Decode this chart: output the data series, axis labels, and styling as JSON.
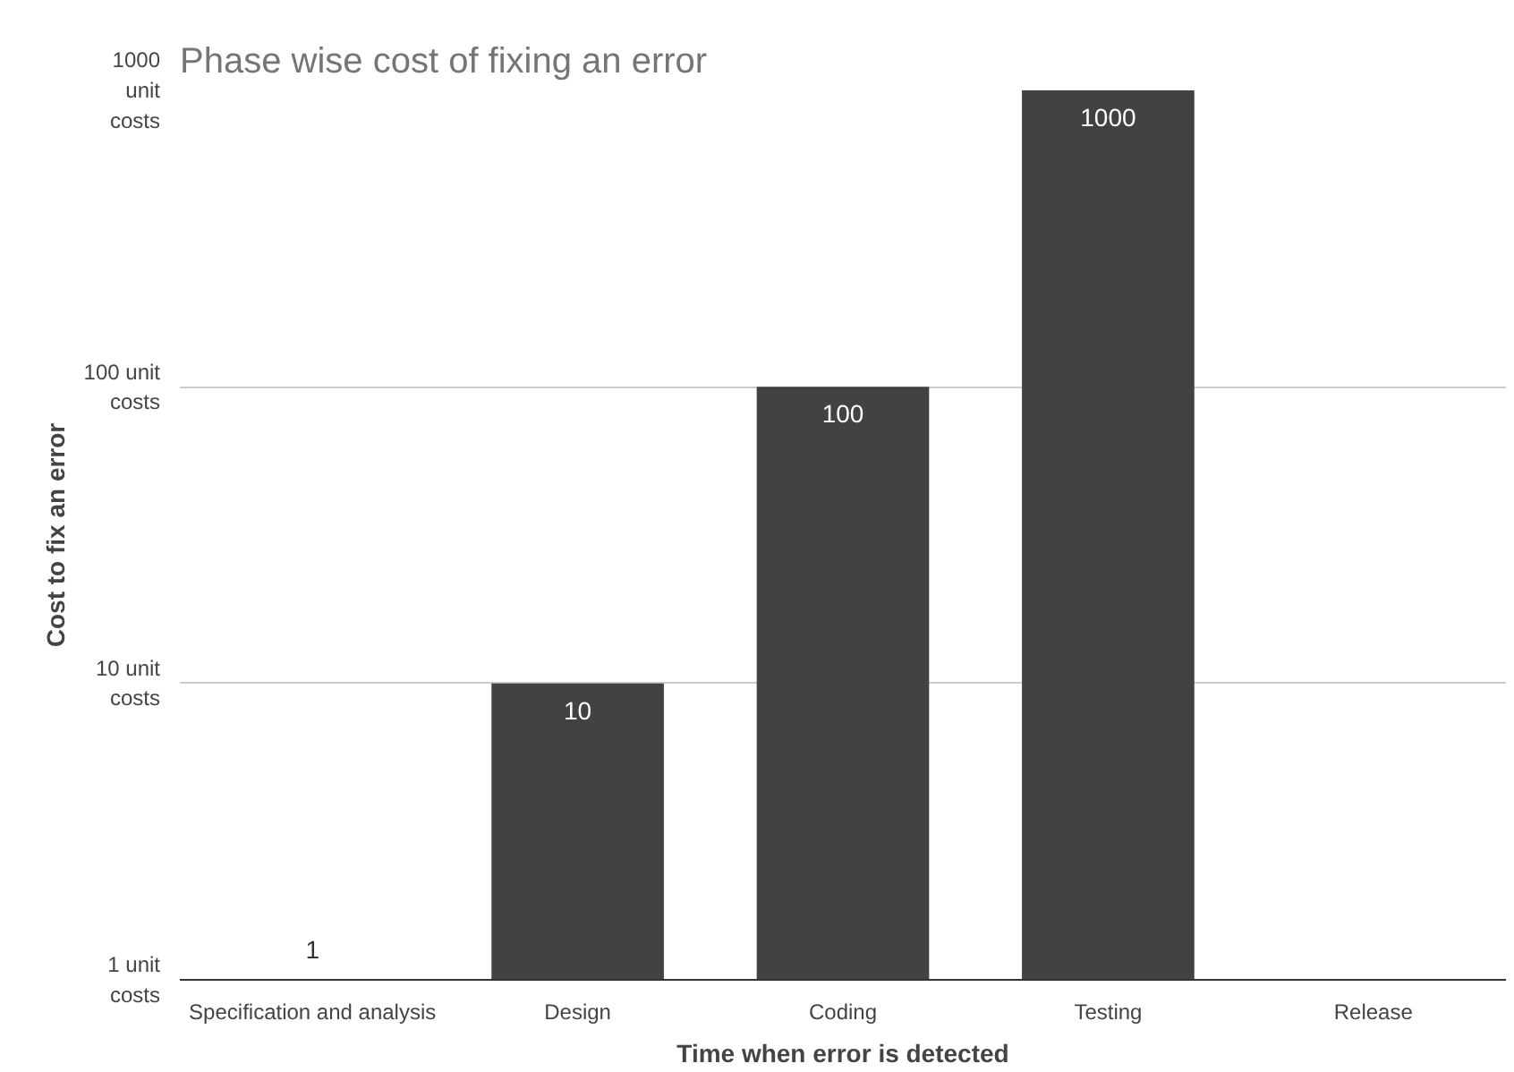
{
  "chart_data": {
    "type": "bar",
    "title": "Phase wise cost of fixing an error",
    "xlabel": "Time when error is detected",
    "ylabel": "Cost to fix an error",
    "categories": [
      "Specification and analysis",
      "Design",
      "Coding",
      "Testing",
      "Release"
    ],
    "values": [
      1,
      10,
      100,
      1000,
      null
    ],
    "color": "#424242",
    "log": "y",
    "ylim": [
      1,
      1000
    ],
    "yticks": [
      {
        "value": 1,
        "label": "1 unit costs"
      },
      {
        "value": 10,
        "label": "10 unit costs"
      },
      {
        "value": 100,
        "label": "100 unit costs"
      },
      {
        "value": 1000,
        "label": "1000 unit costs"
      }
    ],
    "grid": "y",
    "data_labels": true
  }
}
